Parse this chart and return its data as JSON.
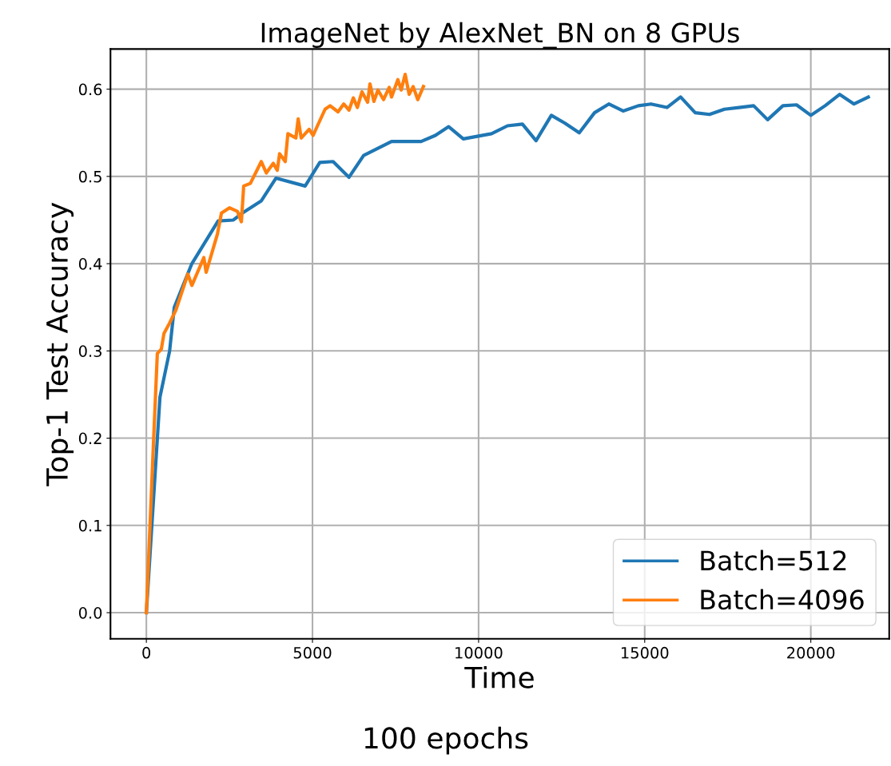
{
  "chart_data": {
    "type": "line",
    "title": "ImageNet by AlexNet_BN on 8 GPUs",
    "xlabel": "Time",
    "ylabel": "Top-1 Test Accuracy",
    "annotations": [
      "100 epochs"
    ],
    "xlim": [
      -1080,
      22360
    ],
    "ylim": [
      -0.03,
      0.646
    ],
    "xticks": [
      0,
      5000,
      10000,
      15000,
      20000
    ],
    "yticks": [
      {
        "value": 0,
        "label": "0.0"
      },
      0.1,
      0.2,
      0.3,
      0.4,
      0.5,
      0.6
    ],
    "grid": true,
    "legend": "bottom right",
    "line_style": "solid",
    "marker": "none",
    "series": [
      {
        "name": "Batch=512",
        "color": "#1f77b4",
        "x": [
          0,
          409,
          700,
          840,
          1370,
          2160,
          2620,
          2890,
          3460,
          3900,
          4780,
          5220,
          5620,
          6100,
          6540,
          7380,
          8270,
          8700,
          9100,
          9540,
          10390,
          10870,
          11320,
          11730,
          12190,
          12600,
          13030,
          13490,
          13920,
          14350,
          14810,
          15190,
          15670,
          16080,
          16520,
          16950,
          17400,
          17840,
          18280,
          18700,
          19160,
          19570,
          20000,
          20430,
          20870,
          21300,
          21730
        ],
        "values": [
          0,
          0.247,
          0.3,
          0.35,
          0.4,
          0.449,
          0.45,
          0.458,
          0.472,
          0.498,
          0.489,
          0.516,
          0.517,
          0.499,
          0.524,
          0.54,
          0.54,
          0.547,
          0.557,
          0.543,
          0.549,
          0.558,
          0.56,
          0.541,
          0.57,
          0.561,
          0.55,
          0.573,
          0.583,
          0.575,
          0.581,
          0.583,
          0.579,
          0.591,
          0.573,
          0.571,
          0.577,
          0.579,
          0.581,
          0.565,
          0.581,
          0.582,
          0.57,
          0.581,
          0.594,
          0.583,
          0.591
        ]
      },
      {
        "name": "Batch=4096",
        "color": "#ff7f0e",
        "x": [
          0,
          220,
          330,
          450,
          530,
          700,
          890,
          1250,
          1370,
          1730,
          1800,
          2140,
          2260,
          2500,
          2740,
          2860,
          2930,
          3130,
          3460,
          3610,
          3820,
          3940,
          4010,
          4180,
          4260,
          4500,
          4570,
          4660,
          4900,
          5020,
          5150,
          5380,
          5530,
          5770,
          5940,
          6100,
          6230,
          6350,
          6490,
          6660,
          6730,
          6850,
          6970,
          7140,
          7310,
          7380,
          7570,
          7670,
          7790,
          7910,
          8030,
          8170,
          8340
        ],
        "values": [
          0,
          0.2,
          0.297,
          0.302,
          0.32,
          0.332,
          0.347,
          0.388,
          0.375,
          0.407,
          0.39,
          0.434,
          0.458,
          0.464,
          0.46,
          0.448,
          0.489,
          0.492,
          0.517,
          0.504,
          0.515,
          0.507,
          0.526,
          0.517,
          0.549,
          0.544,
          0.566,
          0.544,
          0.554,
          0.547,
          0.558,
          0.577,
          0.581,
          0.574,
          0.583,
          0.576,
          0.59,
          0.579,
          0.597,
          0.585,
          0.606,
          0.586,
          0.599,
          0.588,
          0.602,
          0.591,
          0.611,
          0.599,
          0.617,
          0.594,
          0.603,
          0.588,
          0.603
        ]
      }
    ]
  }
}
